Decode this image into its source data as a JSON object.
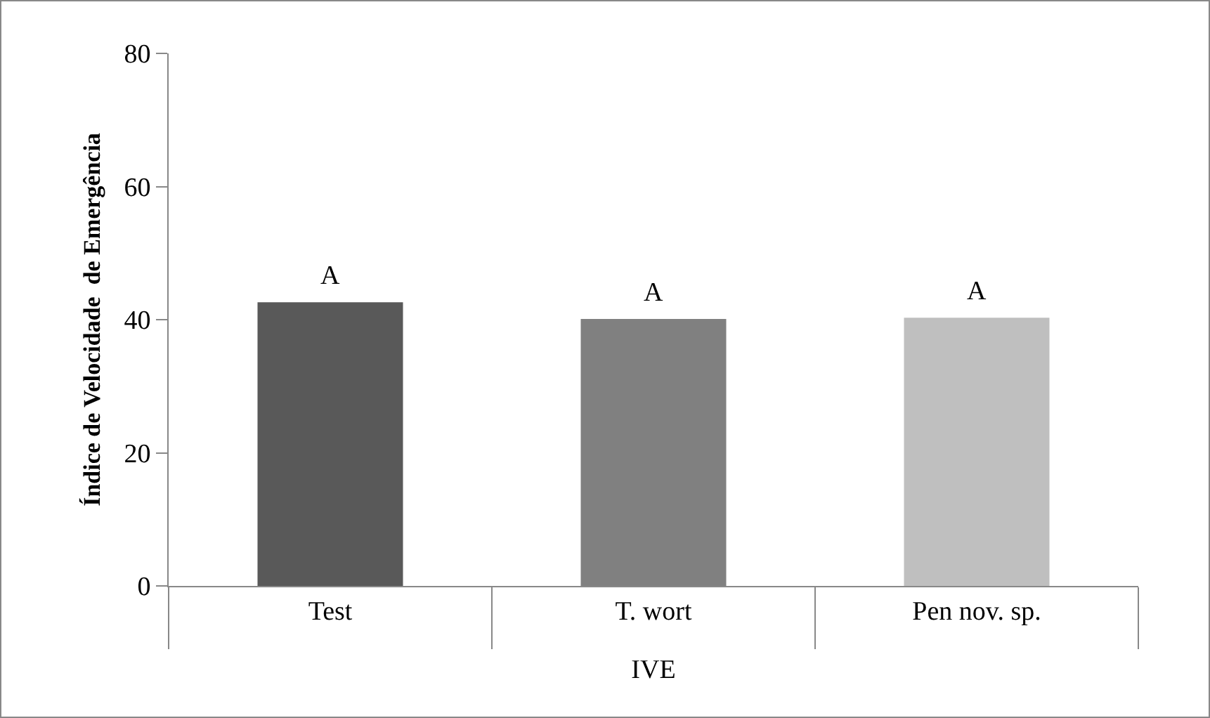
{
  "chart_data": {
    "type": "bar",
    "categories": [
      "Test",
      "T. wort",
      "Pen nov. sp."
    ],
    "values": [
      42.6,
      40.1,
      40.3
    ],
    "colors": [
      "#595959",
      "#808080",
      "#bfbfbf"
    ],
    "xlabel": "IVE",
    "ylabel": "Índice de Velocidade  de Emergência",
    "ylim": [
      0,
      80
    ],
    "yticks": [
      0,
      20,
      40,
      60,
      80
    ],
    "grid": false,
    "annotations": [
      {
        "text": "A",
        "x": "Test",
        "y": 42.6
      },
      {
        "text": "A",
        "x": "T. wort",
        "y": 40.1
      },
      {
        "text": "A",
        "x": "Pen nov. sp.",
        "y": 40.3
      }
    ]
  }
}
